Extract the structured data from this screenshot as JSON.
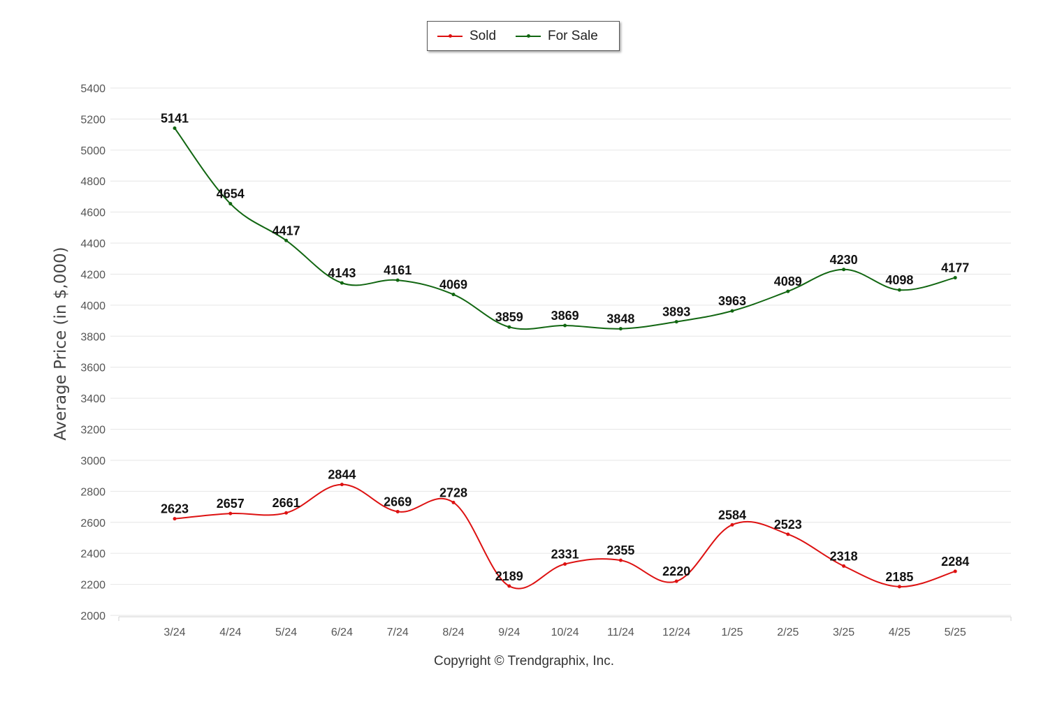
{
  "chart_data": {
    "type": "line",
    "title": "",
    "xlabel": "",
    "ylabel": "Average Price  (in $,000)",
    "ylim": [
      2000,
      5400
    ],
    "yticks": [
      2000,
      2200,
      2400,
      2600,
      2800,
      3000,
      3200,
      3400,
      3600,
      3800,
      4000,
      4200,
      4400,
      4600,
      4800,
      5000,
      5200,
      5400
    ],
    "grid": true,
    "legend": "top-center",
    "categories": [
      "3/24",
      "4/24",
      "5/24",
      "6/24",
      "7/24",
      "8/24",
      "9/24",
      "10/24",
      "11/24",
      "12/24",
      "1/25",
      "2/25",
      "3/25",
      "4/25",
      "5/25"
    ],
    "series": [
      {
        "name": "Sold",
        "color": "#dd1111",
        "values": [
          2623,
          2657,
          2661,
          2844,
          2669,
          2728,
          2189,
          2331,
          2355,
          2220,
          2584,
          2523,
          2318,
          2185,
          2284
        ]
      },
      {
        "name": "For Sale",
        "color": "#116611",
        "values": [
          5141,
          4654,
          4417,
          4143,
          4161,
          4069,
          3859,
          3869,
          3848,
          3893,
          3963,
          4089,
          4230,
          4098,
          4177
        ]
      }
    ]
  },
  "footer": {
    "copyright": "Copyright © Trendgraphix, Inc."
  }
}
